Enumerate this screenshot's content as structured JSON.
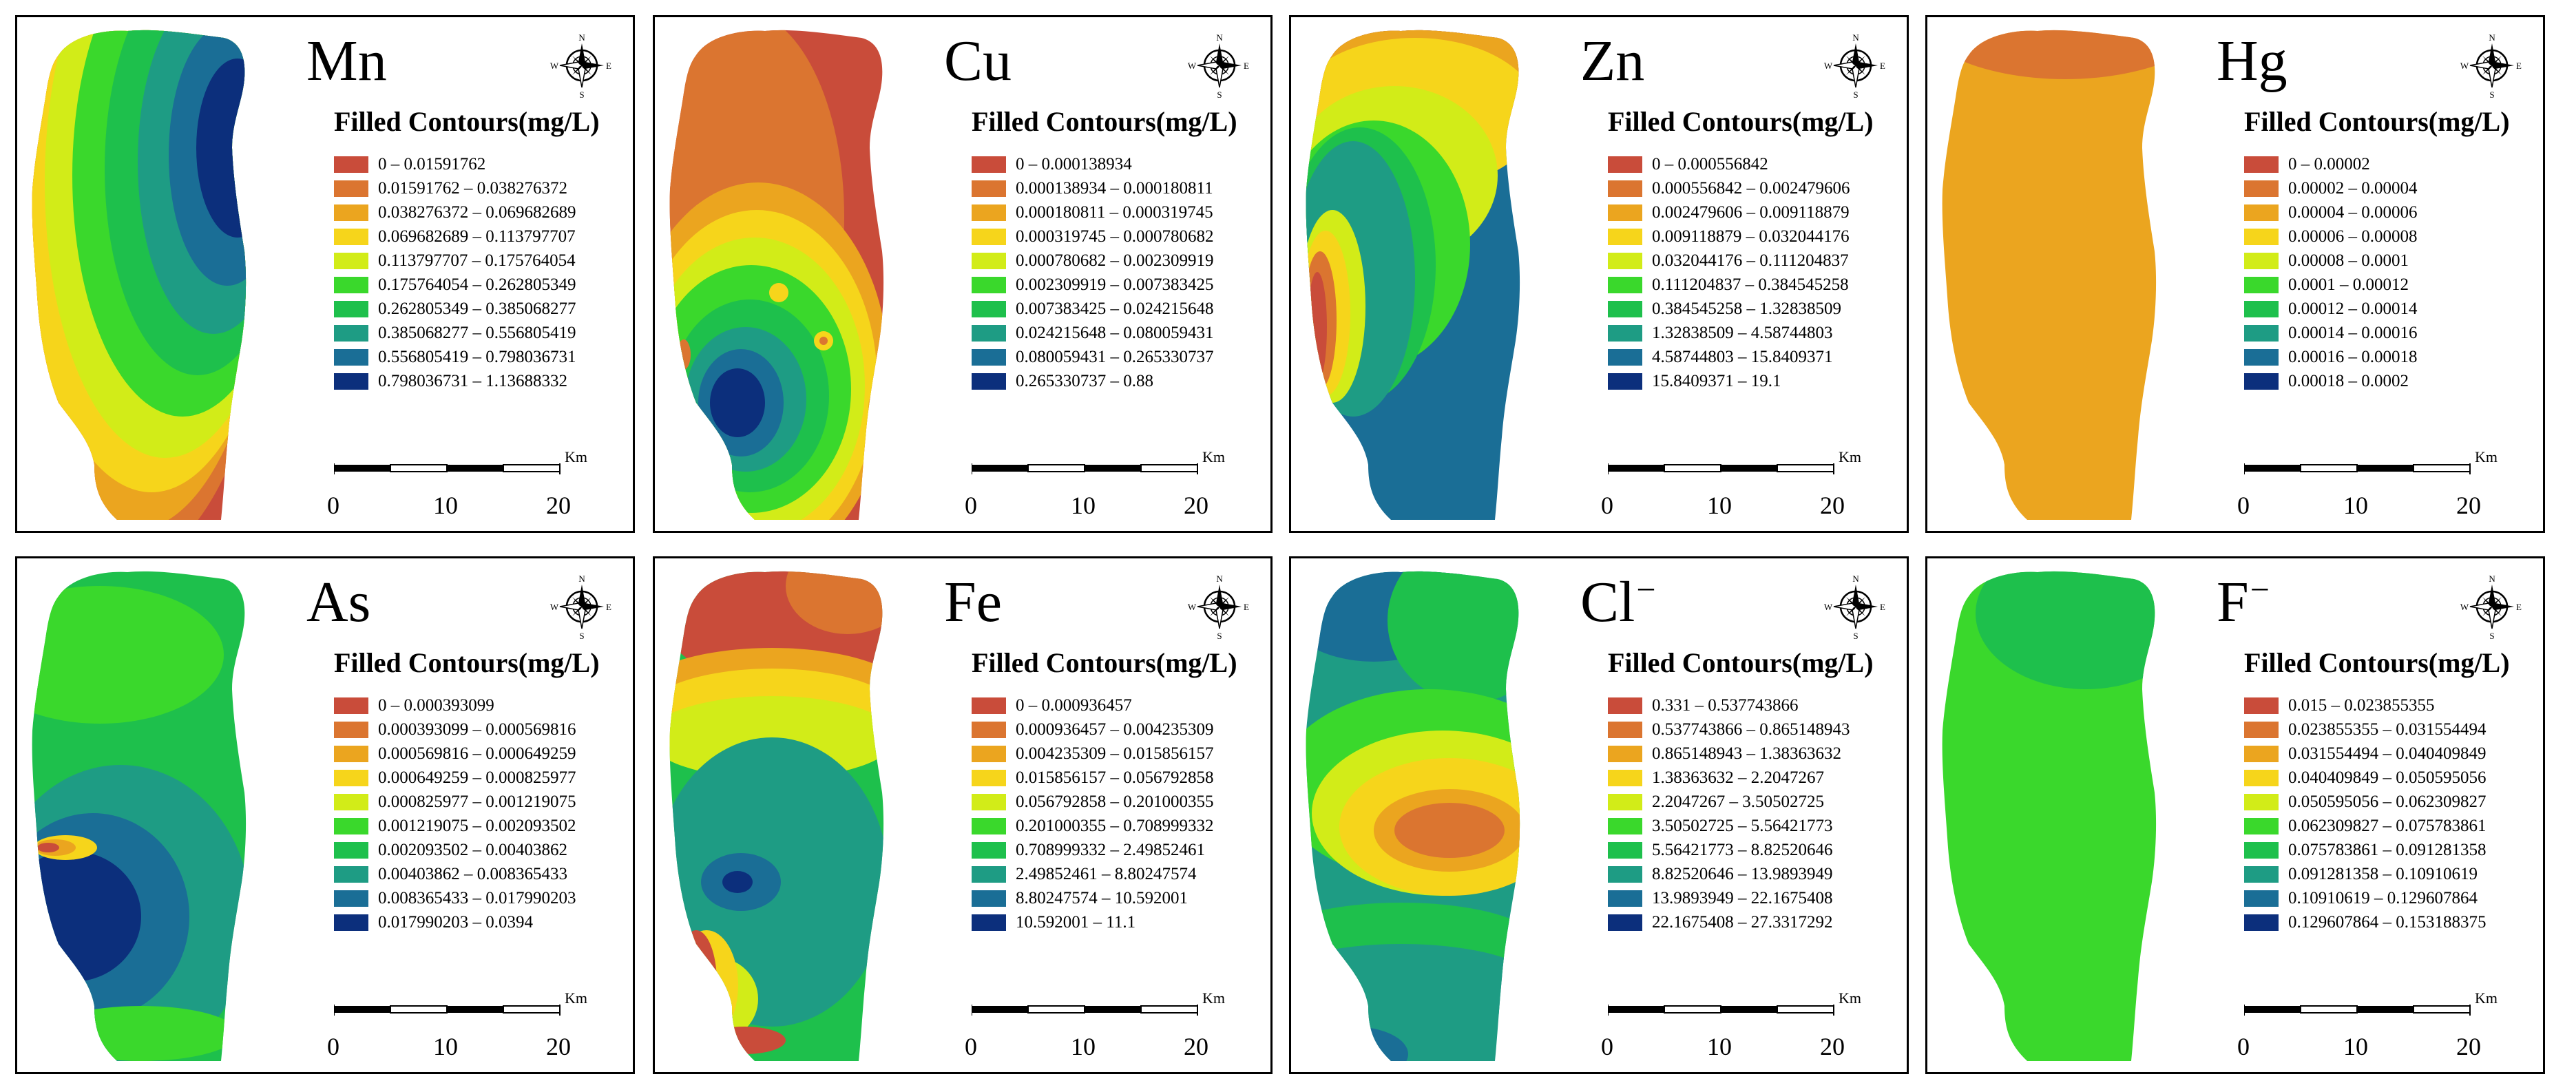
{
  "legend_title": "Filled Contours(mg/L)",
  "scale": {
    "ticks": [
      "0",
      "10",
      "20"
    ],
    "unit": "Km"
  },
  "compass": {
    "n": "N",
    "s": "S",
    "e": "E",
    "w": "W"
  },
  "colors": [
    "#c94c3a",
    "#db7530",
    "#eba51f",
    "#f6d51b",
    "#d2ec18",
    "#3ad82c",
    "#1ec04c",
    "#1e9c84",
    "#1a6e96",
    "#0c2f7c"
  ],
  "panels": [
    {
      "id": "mn",
      "element": "Mn",
      "sup": "",
      "classes": [
        "0 – 0.01591762",
        "0.01591762 – 0.038276372",
        "0.038276372 – 0.069682689",
        "0.069682689 – 0.113797707",
        "0.113797707 – 0.175764054",
        "0.175764054 – 0.262805349",
        "0.262805349 – 0.385068277",
        "0.385068277 – 0.556805419",
        "0.556805419 – 0.798036731",
        "0.798036731 – 1.13688332"
      ]
    },
    {
      "id": "cu",
      "element": "Cu",
      "sup": "",
      "classes": [
        "0 – 0.000138934",
        "0.000138934 – 0.000180811",
        "0.000180811 – 0.000319745",
        "0.000319745 – 0.000780682",
        "0.000780682 – 0.002309919",
        "0.002309919 – 0.007383425",
        "0.007383425 – 0.024215648",
        "0.024215648 – 0.080059431",
        "0.080059431 – 0.265330737",
        "0.265330737 – 0.88"
      ]
    },
    {
      "id": "zn",
      "element": "Zn",
      "sup": "",
      "classes": [
        "0 – 0.000556842",
        "0.000556842 – 0.002479606",
        "0.002479606 – 0.009118879",
        "0.009118879 – 0.032044176",
        "0.032044176 – 0.111204837",
        "0.111204837 – 0.384545258",
        "0.384545258 – 1.32838509",
        "1.32838509 – 4.58744803",
        "4.58744803 – 15.8409371",
        "15.8409371 – 19.1"
      ]
    },
    {
      "id": "hg",
      "element": "Hg",
      "sup": "",
      "classes": [
        "0 – 0.00002",
        "0.00002 – 0.00004",
        "0.00004 – 0.00006",
        "0.00006 – 0.00008",
        "0.00008 – 0.0001",
        "0.0001 – 0.00012",
        "0.00012 – 0.00014",
        "0.00014 – 0.00016",
        "0.00016 – 0.00018",
        "0.00018 – 0.0002"
      ]
    },
    {
      "id": "as",
      "element": "As",
      "sup": "",
      "classes": [
        "0 – 0.000393099",
        "0.000393099 – 0.000569816",
        "0.000569816 – 0.000649259",
        "0.000649259 – 0.000825977",
        "0.000825977 – 0.001219075",
        "0.001219075 – 0.002093502",
        "0.002093502 – 0.00403862",
        "0.00403862 – 0.008365433",
        "0.008365433 – 0.017990203",
        "0.017990203 – 0.0394"
      ]
    },
    {
      "id": "fe",
      "element": "Fe",
      "sup": "",
      "classes": [
        "0 – 0.000936457",
        "0.000936457 – 0.004235309",
        "0.004235309 – 0.015856157",
        "0.015856157 – 0.056792858",
        "0.056792858 – 0.201000355",
        "0.201000355 – 0.708999332",
        "0.708999332 – 2.49852461",
        "2.49852461 – 8.80247574",
        "8.80247574 – 10.592001",
        "10.592001 – 11.1"
      ]
    },
    {
      "id": "cl",
      "element": "Cl",
      "sup": "−",
      "classes": [
        "0.331 – 0.537743866",
        "0.537743866 – 0.865148943",
        "0.865148943 – 1.38363632",
        "1.38363632 – 2.2047267",
        "2.2047267 – 3.50502725",
        "3.50502725 – 5.56421773",
        "5.56421773 – 8.82520646",
        "8.82520646 – 13.9893949",
        "13.9893949 – 22.1675408",
        "22.1675408 – 27.3317292"
      ]
    },
    {
      "id": "f",
      "element": "F",
      "sup": "−",
      "classes": [
        "0.015 – 0.023855355",
        "0.023855355 – 0.031554494",
        "0.031554494 – 0.040409849",
        "0.040409849 – 0.050595056",
        "0.050595056 – 0.062309827",
        "0.062309827 – 0.075783861",
        "0.075783861 – 0.091281358",
        "0.091281358 – 0.10910619",
        "0.10910619 – 0.129607864",
        "0.129607864 – 0.153188375"
      ]
    }
  ]
}
